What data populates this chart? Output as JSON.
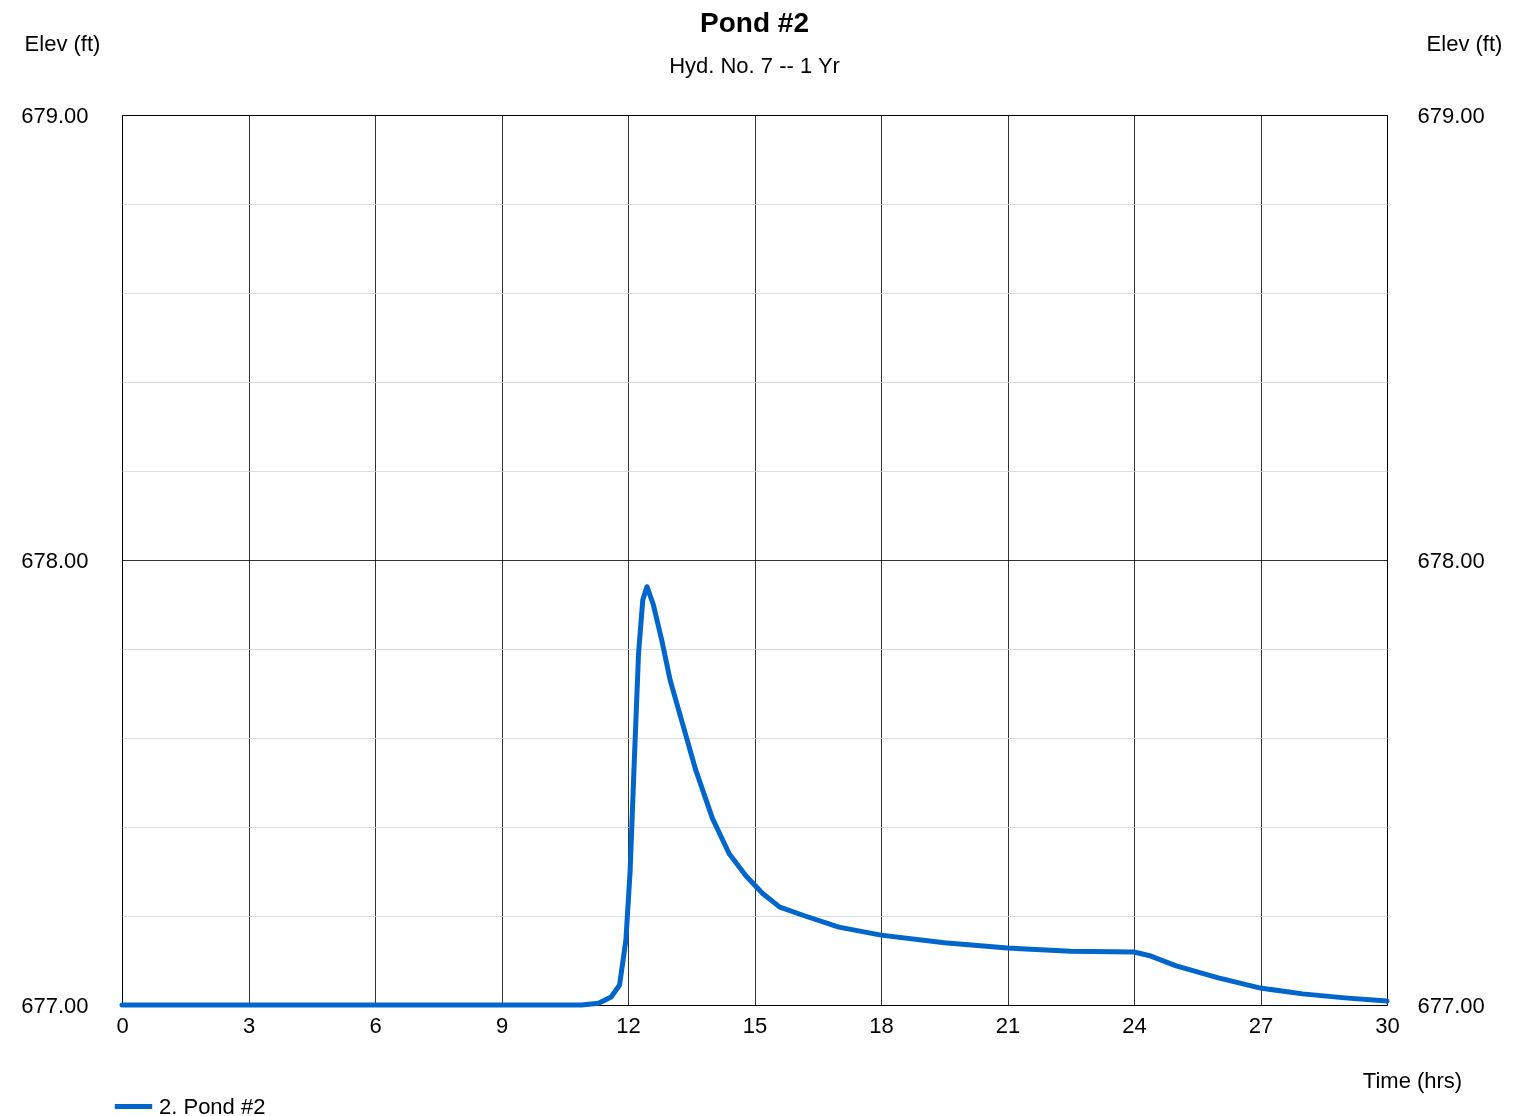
{
  "chart_data": {
    "type": "line",
    "title": "Pond #2",
    "subtitle": "Hyd. No. 7 -- 1 Yr",
    "xlabel": "Time (hrs)",
    "ylabel": "Elev (ft)",
    "y2label": "Elev (ft)",
    "xlim": [
      0,
      30
    ],
    "xticks": [
      0,
      3,
      6,
      9,
      12,
      15,
      18,
      21,
      24,
      27,
      30
    ],
    "ylim": [
      677,
      679
    ],
    "yticks": [
      {
        "value": 677,
        "label": "677.00"
      },
      {
        "value": 677.2,
        "label": null
      },
      {
        "value": 677.4,
        "label": null
      },
      {
        "value": 677.6,
        "label": null
      },
      {
        "value": 677.8,
        "label": null
      },
      {
        "value": 678,
        "label": "678.00"
      },
      {
        "value": 678.2,
        "label": null
      },
      {
        "value": 678.4,
        "label": null
      },
      {
        "value": 678.6,
        "label": null
      },
      {
        "value": 678.8,
        "label": null
      },
      {
        "value": 679,
        "label": "679.00"
      }
    ],
    "y2lim": [
      677,
      679
    ],
    "y2ticks": [
      {
        "value": 677,
        "label": "677.00"
      },
      {
        "value": 678,
        "label": "678.00"
      },
      {
        "value": 679,
        "label": "679.00"
      }
    ],
    "grid": true,
    "legend": "bottom",
    "marker": "none",
    "line_style": "solid",
    "series": [
      {
        "name": "2. Pond #2",
        "color": "#0066cc",
        "x": [
          0,
          10.9,
          11.3,
          11.6,
          11.8,
          11.95,
          12.05,
          12.15,
          12.25,
          12.35,
          12.45,
          12.6,
          12.8,
          13.0,
          13.3,
          13.6,
          14.0,
          14.4,
          14.8,
          15.2,
          15.6,
          16.2,
          17.0,
          18.0,
          19.5,
          21.0,
          22.5,
          24.0,
          24.4,
          25.0,
          26.0,
          27.0,
          28.0,
          29.0,
          30.0
        ],
        "values": [
          677.0,
          677.0,
          677.004,
          677.018,
          677.045,
          677.146,
          677.3,
          677.55,
          677.79,
          677.91,
          677.94,
          677.9,
          677.82,
          677.73,
          677.63,
          677.53,
          677.42,
          677.34,
          677.29,
          677.25,
          677.22,
          677.2,
          677.175,
          677.157,
          677.14,
          677.128,
          677.121,
          677.119,
          677.11,
          677.088,
          677.061,
          677.038,
          677.025,
          677.016,
          677.009
        ]
      }
    ]
  }
}
